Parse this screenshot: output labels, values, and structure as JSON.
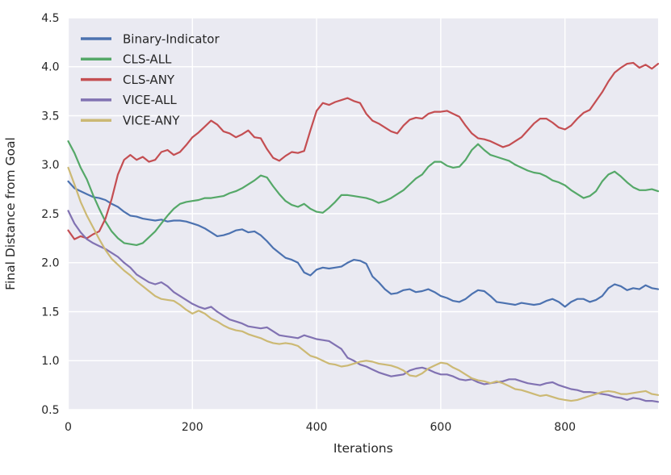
{
  "chart_data": {
    "type": "line",
    "title": "",
    "xlabel": "Iterations",
    "ylabel": "Final Distance from Goal",
    "xlim": [
      0,
      950
    ],
    "ylim": [
      0.5,
      4.5
    ],
    "xticks": [
      0,
      200,
      400,
      600,
      800
    ],
    "yticks": [
      0.5,
      1.0,
      1.5,
      2.0,
      2.5,
      3.0,
      3.5,
      4.0,
      4.5
    ],
    "grid": true,
    "plot_bg": "#EAEAF2",
    "grid_color": "#FFFFFF",
    "text_color": "#262626",
    "legend_position": "upper-left",
    "x": [
      0,
      10,
      20,
      30,
      40,
      50,
      60,
      70,
      80,
      90,
      100,
      110,
      120,
      130,
      140,
      150,
      160,
      170,
      180,
      190,
      200,
      210,
      220,
      230,
      240,
      250,
      260,
      270,
      280,
      290,
      300,
      310,
      320,
      330,
      340,
      350,
      360,
      370,
      380,
      390,
      400,
      410,
      420,
      430,
      440,
      450,
      460,
      470,
      480,
      490,
      500,
      510,
      520,
      530,
      540,
      550,
      560,
      570,
      580,
      590,
      600,
      610,
      620,
      630,
      640,
      650,
      660,
      670,
      680,
      690,
      700,
      710,
      720,
      730,
      740,
      750,
      760,
      770,
      780,
      790,
      800,
      810,
      820,
      830,
      840,
      850,
      860,
      870,
      880,
      890,
      900,
      910,
      920,
      930,
      940,
      950
    ],
    "series": [
      {
        "name": "Binary-Indicator",
        "color": "#4C72B0",
        "values": [
          2.83,
          2.76,
          2.73,
          2.7,
          2.67,
          2.66,
          2.64,
          2.6,
          2.57,
          2.52,
          2.48,
          2.47,
          2.45,
          2.44,
          2.43,
          2.44,
          2.42,
          2.43,
          2.43,
          2.42,
          2.4,
          2.38,
          2.35,
          2.31,
          2.27,
          2.28,
          2.3,
          2.33,
          2.34,
          2.31,
          2.32,
          2.28,
          2.22,
          2.15,
          2.1,
          2.05,
          2.03,
          2.0,
          1.9,
          1.87,
          1.93,
          1.95,
          1.94,
          1.95,
          1.96,
          2.0,
          2.03,
          2.02,
          1.99,
          1.86,
          1.8,
          1.73,
          1.68,
          1.69,
          1.72,
          1.73,
          1.7,
          1.71,
          1.73,
          1.7,
          1.66,
          1.64,
          1.61,
          1.6,
          1.63,
          1.68,
          1.72,
          1.71,
          1.66,
          1.6,
          1.59,
          1.58,
          1.57,
          1.59,
          1.58,
          1.57,
          1.58,
          1.61,
          1.63,
          1.6,
          1.55,
          1.6,
          1.63,
          1.63,
          1.6,
          1.62,
          1.66,
          1.74,
          1.78,
          1.76,
          1.72,
          1.74,
          1.73,
          1.77,
          1.74,
          1.73
        ]
      },
      {
        "name": "CLS-ALL",
        "color": "#55A868",
        "values": [
          3.24,
          3.12,
          2.97,
          2.85,
          2.69,
          2.55,
          2.42,
          2.32,
          2.25,
          2.2,
          2.19,
          2.18,
          2.2,
          2.26,
          2.32,
          2.4,
          2.48,
          2.55,
          2.6,
          2.62,
          2.63,
          2.64,
          2.66,
          2.66,
          2.67,
          2.68,
          2.71,
          2.73,
          2.76,
          2.8,
          2.84,
          2.89,
          2.87,
          2.78,
          2.7,
          2.63,
          2.59,
          2.57,
          2.6,
          2.55,
          2.52,
          2.51,
          2.56,
          2.62,
          2.69,
          2.69,
          2.68,
          2.67,
          2.66,
          2.64,
          2.61,
          2.63,
          2.66,
          2.7,
          2.74,
          2.8,
          2.86,
          2.9,
          2.98,
          3.03,
          3.03,
          2.99,
          2.97,
          2.98,
          3.05,
          3.15,
          3.21,
          3.15,
          3.1,
          3.08,
          3.06,
          3.04,
          3.0,
          2.97,
          2.94,
          2.92,
          2.91,
          2.88,
          2.84,
          2.82,
          2.79,
          2.74,
          2.7,
          2.66,
          2.68,
          2.73,
          2.83,
          2.9,
          2.93,
          2.88,
          2.82,
          2.77,
          2.74,
          2.74,
          2.75,
          2.73
        ]
      },
      {
        "name": "CLS-ANY",
        "color": "#C44E52",
        "values": [
          2.33,
          2.24,
          2.27,
          2.25,
          2.29,
          2.32,
          2.45,
          2.65,
          2.9,
          3.05,
          3.1,
          3.05,
          3.08,
          3.03,
          3.05,
          3.13,
          3.15,
          3.1,
          3.13,
          3.2,
          3.28,
          3.33,
          3.39,
          3.45,
          3.41,
          3.34,
          3.32,
          3.28,
          3.31,
          3.35,
          3.28,
          3.27,
          3.16,
          3.07,
          3.04,
          3.09,
          3.13,
          3.12,
          3.14,
          3.35,
          3.55,
          3.63,
          3.61,
          3.64,
          3.66,
          3.68,
          3.65,
          3.63,
          3.52,
          3.45,
          3.42,
          3.38,
          3.34,
          3.32,
          3.4,
          3.46,
          3.48,
          3.47,
          3.52,
          3.54,
          3.54,
          3.55,
          3.52,
          3.49,
          3.4,
          3.32,
          3.27,
          3.26,
          3.24,
          3.21,
          3.18,
          3.2,
          3.24,
          3.28,
          3.35,
          3.42,
          3.47,
          3.47,
          3.43,
          3.38,
          3.36,
          3.4,
          3.47,
          3.53,
          3.56,
          3.65,
          3.74,
          3.85,
          3.94,
          3.99,
          4.03,
          4.04,
          3.99,
          4.02,
          3.98,
          4.03
        ]
      },
      {
        "name": "VICE-ALL",
        "color": "#8172B2",
        "values": [
          2.53,
          2.4,
          2.31,
          2.24,
          2.2,
          2.17,
          2.14,
          2.1,
          2.06,
          2.0,
          1.95,
          1.88,
          1.84,
          1.8,
          1.78,
          1.8,
          1.76,
          1.7,
          1.66,
          1.62,
          1.58,
          1.55,
          1.53,
          1.55,
          1.5,
          1.46,
          1.42,
          1.4,
          1.38,
          1.35,
          1.34,
          1.33,
          1.34,
          1.3,
          1.26,
          1.25,
          1.24,
          1.23,
          1.26,
          1.24,
          1.22,
          1.21,
          1.2,
          1.16,
          1.12,
          1.03,
          1.0,
          0.96,
          0.94,
          0.91,
          0.88,
          0.86,
          0.84,
          0.85,
          0.86,
          0.9,
          0.92,
          0.93,
          0.91,
          0.88,
          0.86,
          0.86,
          0.84,
          0.81,
          0.8,
          0.81,
          0.78,
          0.76,
          0.77,
          0.78,
          0.79,
          0.81,
          0.81,
          0.79,
          0.77,
          0.76,
          0.75,
          0.77,
          0.78,
          0.75,
          0.73,
          0.71,
          0.7,
          0.68,
          0.68,
          0.67,
          0.66,
          0.65,
          0.63,
          0.62,
          0.6,
          0.62,
          0.61,
          0.59,
          0.59,
          0.58
        ]
      },
      {
        "name": "VICE-ANY",
        "color": "#CCB974",
        "values": [
          2.97,
          2.8,
          2.62,
          2.48,
          2.36,
          2.24,
          2.13,
          2.04,
          1.98,
          1.92,
          1.87,
          1.81,
          1.76,
          1.71,
          1.66,
          1.63,
          1.62,
          1.61,
          1.57,
          1.52,
          1.48,
          1.51,
          1.48,
          1.43,
          1.4,
          1.36,
          1.33,
          1.31,
          1.3,
          1.27,
          1.25,
          1.23,
          1.2,
          1.18,
          1.17,
          1.18,
          1.17,
          1.15,
          1.1,
          1.05,
          1.03,
          1.0,
          0.97,
          0.96,
          0.94,
          0.95,
          0.97,
          0.99,
          1.0,
          0.99,
          0.97,
          0.96,
          0.95,
          0.93,
          0.9,
          0.85,
          0.84,
          0.87,
          0.92,
          0.95,
          0.98,
          0.97,
          0.93,
          0.9,
          0.86,
          0.82,
          0.8,
          0.79,
          0.77,
          0.79,
          0.77,
          0.74,
          0.71,
          0.7,
          0.68,
          0.66,
          0.64,
          0.65,
          0.63,
          0.61,
          0.6,
          0.59,
          0.6,
          0.62,
          0.64,
          0.66,
          0.68,
          0.69,
          0.68,
          0.66,
          0.66,
          0.67,
          0.68,
          0.69,
          0.66,
          0.65
        ]
      }
    ]
  }
}
